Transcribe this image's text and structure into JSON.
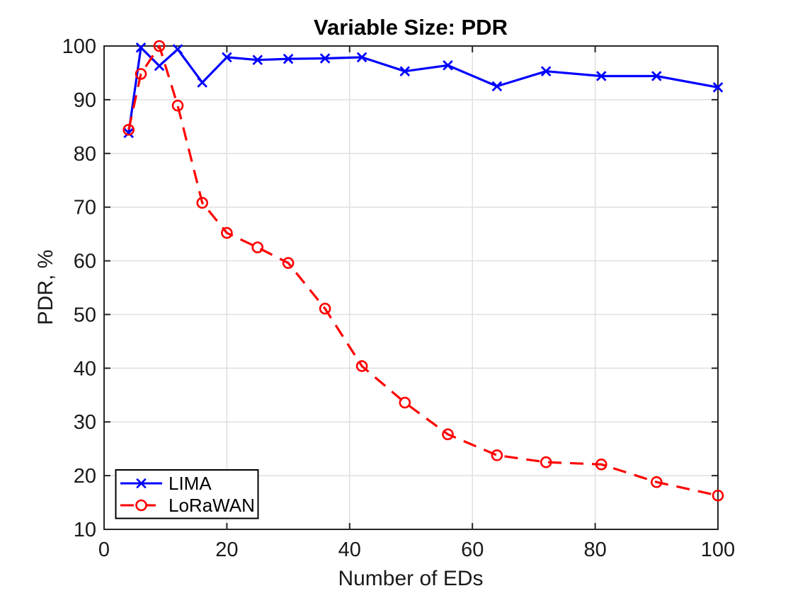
{
  "figure": {
    "background_color": "#ffffff",
    "axis_color": "#262626",
    "grid_color": "#e0e0e0",
    "legend_border_color": "#000000",
    "legend_background": "#ffffff"
  },
  "chart_data": {
    "type": "line",
    "title": "Variable Size: PDR",
    "xlabel": "Number of EDs",
    "ylabel": "PDR, %",
    "xlim": [
      0,
      100
    ],
    "ylim": [
      10,
      100
    ],
    "x_ticks": [
      0,
      20,
      40,
      60,
      80,
      100
    ],
    "y_ticks": [
      10,
      20,
      30,
      40,
      50,
      60,
      70,
      80,
      90,
      100
    ],
    "grid": true,
    "legend_position": "bottom-left",
    "x": [
      4,
      6,
      9,
      12,
      16,
      20,
      25,
      30,
      36,
      42,
      49,
      56,
      64,
      72,
      81,
      90,
      100
    ],
    "series": [
      {
        "name": "LIMA",
        "color": "#0000ff",
        "line_style": "solid",
        "marker": "x",
        "values": [
          83.8,
          99.7,
          96.3,
          99.4,
          93.2,
          97.9,
          97.4,
          97.6,
          97.7,
          97.9,
          95.3,
          96.4,
          92.5,
          95.3,
          94.4,
          94.4,
          92.3
        ]
      },
      {
        "name": "LoRaWAN",
        "color": "#ff0000",
        "line_style": "dashed",
        "marker": "o",
        "values": [
          84.4,
          94.8,
          100,
          88.9,
          70.8,
          65.2,
          62.5,
          59.6,
          51.1,
          40.4,
          33.6,
          27.7,
          23.8,
          22.5,
          22.1,
          18.8,
          16.3
        ]
      }
    ]
  }
}
